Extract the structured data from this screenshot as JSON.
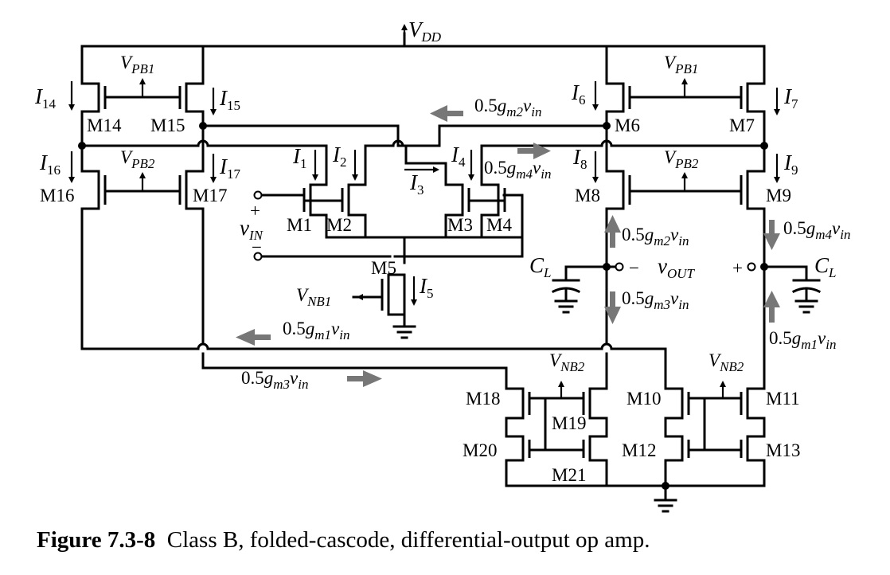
{
  "caption": {
    "number": "Figure 7.3-8",
    "text": "Class B, folded-cascode, differential-output op amp."
  },
  "supply": {
    "main": "V",
    "sub": "DD"
  },
  "bias": {
    "vpb1": {
      "main": "V",
      "sub": "PB1"
    },
    "vpb2": {
      "main": "V",
      "sub": "PB2"
    },
    "vnb1": {
      "main": "V",
      "sub": "NB1"
    },
    "vnb2": {
      "main": "V",
      "sub": "NB2"
    }
  },
  "transistors": [
    "M1",
    "M2",
    "M3",
    "M4",
    "M5",
    "M6",
    "M7",
    "M8",
    "M9",
    "M10",
    "M11",
    "M12",
    "M13",
    "M14",
    "M15",
    "M16",
    "M17",
    "M18",
    "M19",
    "M20",
    "M21"
  ],
  "currents": {
    "I1": {
      "main": "I",
      "sub": "1"
    },
    "I2": {
      "main": "I",
      "sub": "2"
    },
    "I3": {
      "main": "I",
      "sub": "3"
    },
    "I4": {
      "main": "I",
      "sub": "4"
    },
    "I5": {
      "main": "I",
      "sub": "5"
    },
    "I6": {
      "main": "I",
      "sub": "6"
    },
    "I7": {
      "main": "I",
      "sub": "7"
    },
    "I8": {
      "main": "I",
      "sub": "8"
    },
    "I9": {
      "main": "I",
      "sub": "9"
    },
    "I14": {
      "main": "I",
      "sub": "14"
    },
    "I15": {
      "main": "I",
      "sub": "15"
    },
    "I16": {
      "main": "I",
      "sub": "16"
    },
    "I17": {
      "main": "I",
      "sub": "17"
    }
  },
  "signals": {
    "gm2": {
      "coef": "0.5",
      "g": "g",
      "gsub": "m2",
      "v": "v",
      "vsub": "in"
    },
    "gm4": {
      "coef": "0.5",
      "g": "g",
      "gsub": "m4",
      "v": "v",
      "vsub": "in"
    },
    "gm1": {
      "coef": "0.5",
      "g": "g",
      "gsub": "m1",
      "v": "v",
      "vsub": "in"
    },
    "gm3": {
      "coef": "0.5",
      "g": "g",
      "gsub": "m3",
      "v": "v",
      "vsub": "in"
    }
  },
  "input": {
    "plus": "+",
    "minus": "−",
    "main": "v",
    "sub": "IN"
  },
  "output": {
    "minus": "−",
    "plus": "+",
    "main": "v",
    "sub": "OUT"
  },
  "load": {
    "main": "C",
    "sub": "L"
  },
  "colors": {
    "ink": "#000000",
    "signal_arrow": "#777777"
  }
}
